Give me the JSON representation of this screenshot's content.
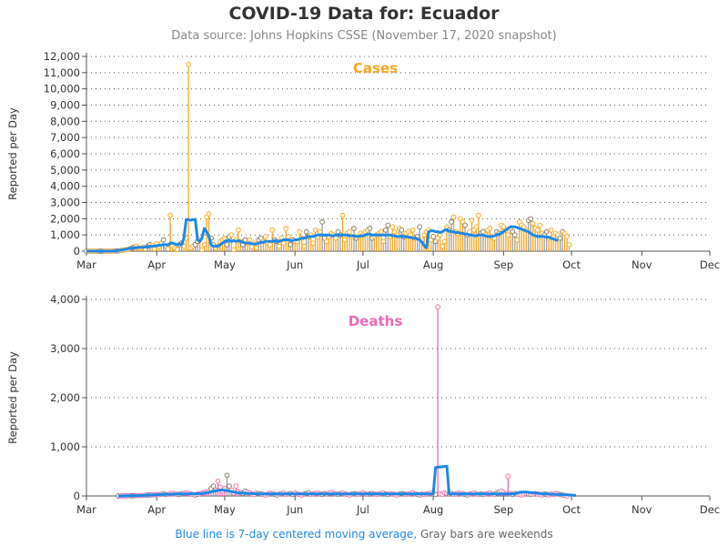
{
  "title": "COVID-19 Data for: Ecuador",
  "subtitle": "Data source: Johns Hopkins CSSE (November 17, 2020 snapshot)",
  "footer": {
    "blue_text": "Blue line is 7-day centered moving average,",
    "gray_text": "Gray bars are weekends"
  },
  "colors": {
    "cases": "#f5a623",
    "deaths": "#e86bb6",
    "moving_average": "#1e88e5",
    "weekend_bar": "#9e9e9e"
  },
  "chart_data": [
    {
      "type": "bar",
      "title": "Cases",
      "ylabel": "Reported per Day",
      "ylim": [
        0,
        12000
      ],
      "yticks": [
        "0",
        "1,000",
        "2,000",
        "3,000",
        "4,000",
        "5,000",
        "6,000",
        "7,000",
        "8,000",
        "9,000",
        "10,000",
        "11,000",
        "12,000"
      ],
      "ytick_values": [
        0,
        1000,
        2000,
        3000,
        4000,
        5000,
        6000,
        7000,
        8000,
        9000,
        10000,
        11000,
        12000
      ],
      "x_tick_labels": [
        "Mar",
        "Apr",
        "May",
        "Jun",
        "Jul",
        "Aug",
        "Sep",
        "Oct",
        "Nov",
        "Dec"
      ],
      "grid": true,
      "start_date": "2020-03-01",
      "daily_values": [
        0,
        0,
        0,
        0,
        0,
        0,
        0,
        0,
        0,
        0,
        0,
        0,
        5,
        10,
        20,
        40,
        60,
        80,
        100,
        150,
        200,
        250,
        300,
        200,
        180,
        250,
        150,
        300,
        400,
        350,
        150,
        450,
        300,
        500,
        700,
        300,
        150,
        2200,
        300,
        200,
        100,
        400,
        500,
        300,
        800,
        11500,
        200,
        300,
        400,
        600,
        700,
        100,
        400,
        2100,
        2300,
        800,
        400,
        200,
        300,
        600,
        700,
        800,
        400,
        900,
        1000,
        100,
        700,
        1300,
        600,
        400,
        700,
        500,
        700,
        300,
        500,
        200,
        700,
        800,
        600,
        900,
        500,
        400,
        1300,
        700,
        600,
        300,
        800,
        500,
        1400,
        900,
        400,
        700,
        600,
        600,
        1200,
        800,
        300,
        1200,
        900,
        1000,
        500,
        1300,
        900,
        1200,
        1800,
        800,
        600,
        900,
        1100,
        1000,
        800,
        1200,
        1000,
        2200,
        700,
        1100,
        1200,
        900,
        1400,
        800,
        900,
        1100,
        1000,
        1200,
        1300,
        1400,
        800,
        900,
        1000,
        1100,
        1200,
        600,
        1300,
        1600,
        900,
        1500,
        1200,
        1000,
        1400,
        1300,
        900,
        1100,
        1200,
        1000,
        1300,
        800,
        900,
        1500,
        700,
        1000,
        1200,
        1300,
        700,
        900,
        600,
        800,
        1000,
        300,
        600,
        1500,
        1300,
        1800,
        2100,
        1200,
        1100,
        2000,
        1800,
        1600,
        1000,
        1200,
        1900,
        1300,
        1500,
        2200,
        1100,
        1200,
        1000,
        1300,
        1400,
        900,
        800,
        1200,
        1100,
        1600,
        1500,
        1300,
        1000,
        1400,
        1200,
        1000,
        700,
        1800,
        1600,
        1500,
        1300,
        1900,
        2000,
        1700,
        1400,
        1300,
        1600,
        1100,
        1000,
        1200,
        800,
        1300,
        900,
        1100,
        1000,
        800,
        1200,
        1100,
        900,
        400
      ],
      "moving_average": [
        0,
        0,
        0,
        0,
        0,
        0,
        0,
        0,
        0,
        0,
        0,
        0,
        10,
        20,
        40,
        60,
        80,
        110,
        140,
        170,
        190,
        210,
        220,
        230,
        230,
        240,
        260,
        280,
        290,
        300,
        310,
        340,
        360,
        370,
        400,
        400,
        380,
        500,
        500,
        450,
        400,
        450,
        400,
        800,
        1950,
        1950,
        1900,
        1950,
        1950,
        700,
        600,
        800,
        1400,
        1200,
        900,
        400,
        300,
        300,
        300,
        400,
        500,
        600,
        650,
        650,
        600,
        650,
        600,
        650,
        600,
        550,
        500,
        500,
        500,
        450,
        450,
        450,
        500,
        550,
        550,
        600,
        600,
        600,
        600,
        650,
        600,
        600,
        650,
        700,
        700,
        700,
        650,
        650,
        700,
        700,
        750,
        800,
        800,
        850,
        900,
        900,
        900,
        950,
        1000,
        1000,
        1000,
        1000,
        1000,
        1000,
        950,
        950,
        1000,
        1000,
        1000,
        1000,
        1000,
        1000,
        950,
        950,
        950,
        900,
        900,
        950,
        950,
        1000,
        1050,
        1050,
        1000,
        1000,
        1000,
        1000,
        1000,
        1000,
        1000,
        1000,
        1000,
        950,
        950,
        900,
        900,
        900,
        900,
        900,
        850,
        850,
        800,
        800,
        750,
        700,
        550,
        350,
        200,
        1200,
        1250,
        1250,
        1200,
        1200,
        1150,
        1200,
        1300,
        1300,
        1250,
        1200,
        1200,
        1150,
        1150,
        1100,
        1100,
        1050,
        1050,
        1000,
        1000,
        950,
        950,
        1000,
        1000,
        1000,
        950,
        900,
        900,
        900,
        950,
        1000,
        1050,
        1100,
        1200,
        1300,
        1400,
        1500,
        1500,
        1500,
        1450,
        1400,
        1350,
        1300,
        1250,
        1200,
        1100,
        1000,
        950,
        900,
        900,
        900,
        900,
        850,
        850,
        800,
        750,
        700,
        650
      ]
    },
    {
      "type": "bar",
      "title": "Deaths",
      "ylabel": "Reported per Day",
      "ylim": [
        0,
        4000
      ],
      "yticks": [
        "0",
        "1,000",
        "2,000",
        "3,000",
        "4,000"
      ],
      "ytick_values": [
        0,
        1000,
        2000,
        3000,
        4000
      ],
      "x_tick_labels": [
        "Mar",
        "Apr",
        "May",
        "Jun",
        "Jul",
        "Aug",
        "Sep",
        "Oct",
        "Nov",
        "Dec"
      ],
      "grid": true,
      "start_date": "2020-03-15",
      "daily_values": [
        0,
        0,
        0,
        2,
        3,
        5,
        2,
        4,
        7,
        10,
        8,
        12,
        15,
        20,
        18,
        25,
        22,
        30,
        27,
        35,
        40,
        30,
        25,
        45,
        50,
        40,
        35,
        30,
        45,
        55,
        60,
        50,
        40,
        30,
        20,
        35,
        45,
        60,
        70,
        80,
        100,
        150,
        200,
        120,
        300,
        180,
        100,
        150,
        420,
        200,
        120,
        60,
        200,
        90,
        70,
        50,
        100,
        80,
        60,
        40,
        30,
        60,
        50,
        40,
        30,
        20,
        40,
        60,
        50,
        30,
        20,
        40,
        50,
        60,
        30,
        40,
        50,
        30,
        60,
        40,
        30,
        20,
        40,
        50,
        60,
        30,
        40,
        50,
        60,
        40,
        30,
        50,
        40,
        60,
        70,
        50,
        40,
        30,
        50,
        60,
        40,
        30,
        20,
        40,
        50,
        40,
        30,
        50,
        60,
        40,
        30,
        40,
        50,
        40,
        30,
        40,
        50,
        60,
        40,
        30,
        50,
        40,
        30,
        20,
        40,
        50,
        40,
        30,
        40,
        50,
        60,
        40,
        30,
        20,
        40,
        30,
        40,
        50,
        60,
        40,
        30,
        3850,
        40,
        30,
        60,
        50,
        40,
        50,
        30,
        40,
        60,
        50,
        40,
        30,
        20,
        40,
        50,
        60,
        40,
        30,
        40,
        30,
        40,
        50,
        60,
        40,
        30,
        60,
        80,
        100,
        70,
        50,
        400,
        40,
        30,
        50,
        40,
        30,
        20,
        40,
        50,
        40,
        30,
        40,
        50,
        40,
        30,
        20,
        40,
        30,
        20,
        40,
        30,
        50,
        40,
        30,
        20,
        10,
        0
      ],
      "moving_average": [
        0,
        0,
        0,
        2,
        3,
        4,
        5,
        6,
        7,
        8,
        10,
        12,
        14,
        17,
        19,
        21,
        23,
        25,
        28,
        30,
        32,
        33,
        34,
        35,
        36,
        37,
        38,
        39,
        40,
        41,
        42,
        43,
        44,
        45,
        45,
        46,
        48,
        52,
        58,
        66,
        75,
        85,
        95,
        105,
        115,
        120,
        120,
        115,
        110,
        100,
        90,
        80,
        70,
        65,
        60,
        58,
        55,
        52,
        50,
        48,
        46,
        44,
        42,
        40,
        40,
        40,
        40,
        40,
        40,
        40,
        40,
        40,
        40,
        40,
        40,
        40,
        40,
        40,
        40,
        40,
        40,
        40,
        40,
        40,
        40,
        40,
        40,
        40,
        40,
        40,
        40,
        40,
        40,
        40,
        40,
        40,
        40,
        40,
        40,
        40,
        40,
        40,
        40,
        40,
        40,
        40,
        40,
        40,
        40,
        40,
        40,
        40,
        40,
        40,
        40,
        40,
        40,
        40,
        40,
        40,
        40,
        40,
        40,
        40,
        40,
        40,
        40,
        40,
        40,
        40,
        40,
        40,
        40,
        40,
        40,
        40,
        40,
        40,
        40,
        40,
        580,
        585,
        590,
        595,
        600,
        605,
        40,
        40,
        40,
        40,
        40,
        40,
        40,
        40,
        40,
        40,
        40,
        40,
        40,
        40,
        40,
        40,
        40,
        40,
        40,
        40,
        40,
        40,
        40,
        40,
        40,
        40,
        40,
        40,
        40,
        45,
        60,
        75,
        80,
        80,
        78,
        75,
        70,
        65,
        60,
        55,
        50,
        45,
        42,
        40,
        38,
        36,
        34,
        32,
        30,
        28,
        26,
        24,
        22,
        20,
        18,
        15,
        10
      ]
    }
  ]
}
